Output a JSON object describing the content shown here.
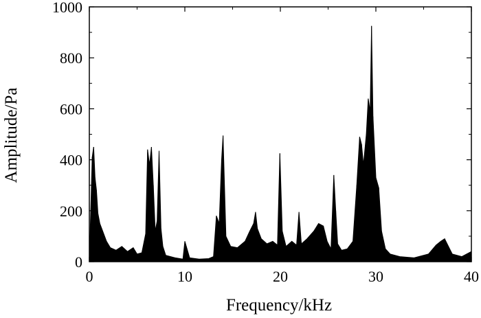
{
  "chart_data": {
    "type": "line",
    "title": "",
    "xlabel": "Frequency/kHz",
    "ylabel": "Amplitude/Pa",
    "xlim": [
      0,
      40
    ],
    "ylim": [
      0,
      1000
    ],
    "xticks": [
      0,
      10,
      20,
      30,
      40
    ],
    "yticks": [
      0,
      200,
      400,
      600,
      800,
      1000
    ],
    "grid": false,
    "legend": "none",
    "series": [
      {
        "color": "#000000",
        "x": [
          0.0,
          0.3,
          0.45,
          0.6,
          0.75,
          0.9,
          1.1,
          1.4,
          1.8,
          2.2,
          2.8,
          3.4,
          4.0,
          4.6,
          5.0,
          5.5,
          5.9,
          6.1,
          6.3,
          6.5,
          6.7,
          6.9,
          7.1,
          7.3,
          7.5,
          7.7,
          8.0,
          9.0,
          9.8,
          10.0,
          10.5,
          11.5,
          12.5,
          13.0,
          13.3,
          13.6,
          13.85,
          14.0,
          14.3,
          14.8,
          15.5,
          16.3,
          16.8,
          17.2,
          17.4,
          17.6,
          18.0,
          18.6,
          19.2,
          19.7,
          19.95,
          20.2,
          20.6,
          21.2,
          21.7,
          21.95,
          22.2,
          22.8,
          23.5,
          24.0,
          24.5,
          24.9,
          25.3,
          25.6,
          25.8,
          26.0,
          26.4,
          27.0,
          27.6,
          28.0,
          28.3,
          28.5,
          28.7,
          29.0,
          29.2,
          29.4,
          29.55,
          29.7,
          30.0,
          30.3,
          30.6,
          31.0,
          31.5,
          32.5,
          34.0,
          35.5,
          36.3,
          36.8,
          37.2,
          37.6,
          38.0,
          39.0,
          40.0
        ],
        "y": [
          0,
          410,
          450,
          330,
          280,
          190,
          150,
          120,
          80,
          55,
          45,
          60,
          40,
          55,
          30,
          35,
          110,
          440,
          380,
          450,
          300,
          120,
          160,
          435,
          130,
          60,
          25,
          15,
          10,
          80,
          15,
          10,
          12,
          20,
          180,
          150,
          400,
          495,
          100,
          60,
          55,
          80,
          120,
          150,
          195,
          130,
          90,
          70,
          80,
          65,
          425,
          120,
          60,
          80,
          65,
          195,
          70,
          90,
          120,
          150,
          140,
          80,
          50,
          340,
          200,
          70,
          45,
          50,
          80,
          300,
          490,
          460,
          380,
          500,
          640,
          590,
          925,
          570,
          330,
          290,
          120,
          50,
          30,
          20,
          15,
          30,
          65,
          80,
          90,
          60,
          30,
          20,
          40
        ]
      }
    ]
  }
}
